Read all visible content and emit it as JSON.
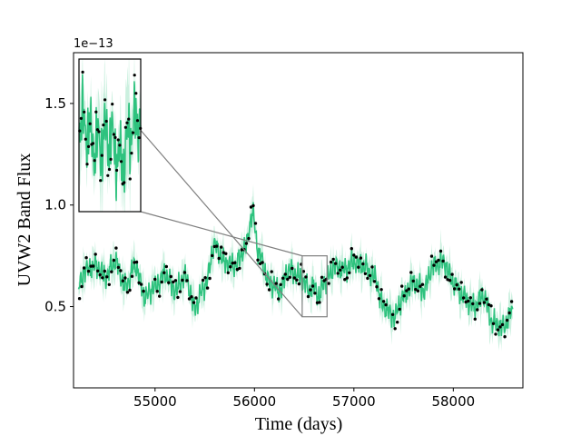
{
  "chart_data": {
    "type": "line",
    "xlabel": "Time (days)",
    "ylabel": "UVW2 Band Flux",
    "y_offset_label": "1e−13",
    "xlim": [
      54180,
      58700
    ],
    "ylim": [
      0.1,
      1.75
    ],
    "x_ticks": [
      55000,
      56000,
      57000,
      58000
    ],
    "x_tick_labels": [
      "55000",
      "56000",
      "57000",
      "58000"
    ],
    "y_ticks": [
      0.5,
      1.0,
      1.5
    ],
    "y_tick_labels": [
      "0.5",
      "1.0",
      "1.5"
    ],
    "grid": false,
    "colors": {
      "model": "#2ec27e",
      "band": "#2ec27e",
      "points": "#000000",
      "connector": "#808080"
    },
    "anchors": {
      "x": [
        54230,
        54300,
        54400,
        54500,
        54600,
        54700,
        54800,
        54900,
        55000,
        55100,
        55200,
        55300,
        55400,
        55500,
        55600,
        55700,
        55800,
        55900,
        55980,
        56050,
        56150,
        56250,
        56350,
        56450,
        56500,
        56550,
        56600,
        56650,
        56700,
        56750,
        56800,
        56900,
        57000,
        57100,
        57200,
        57300,
        57400,
        57500,
        57600,
        57700,
        57800,
        57900,
        58000,
        58100,
        58200,
        58300,
        58400,
        58500,
        58600
      ],
      "y": [
        0.6,
        0.68,
        0.7,
        0.65,
        0.72,
        0.6,
        0.7,
        0.55,
        0.6,
        0.66,
        0.58,
        0.65,
        0.5,
        0.6,
        0.8,
        0.72,
        0.7,
        0.78,
        0.95,
        0.75,
        0.62,
        0.58,
        0.68,
        0.65,
        0.62,
        0.58,
        0.6,
        0.55,
        0.62,
        0.65,
        0.7,
        0.68,
        0.72,
        0.7,
        0.65,
        0.5,
        0.45,
        0.55,
        0.62,
        0.58,
        0.7,
        0.72,
        0.62,
        0.55,
        0.5,
        0.55,
        0.42,
        0.4,
        0.48
      ]
    },
    "zoom_box": {
      "x": [
        56480,
        56730
      ],
      "y": [
        0.45,
        0.75
      ]
    }
  }
}
